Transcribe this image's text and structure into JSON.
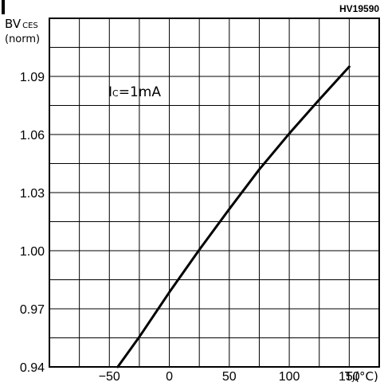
{
  "chart_data": {
    "type": "line",
    "figure_code": "HV19590",
    "ylabel_main": "BV",
    "ylabel_sub": "CES",
    "ylabel_norm": "(norm)",
    "xlabel_main": "T",
    "xlabel_sub": "J",
    "xlabel_unit": "(°C)",
    "annotation_main": "I",
    "annotation_sub": "C",
    "annotation_value": "=1mA",
    "xlim": [
      -100,
      175
    ],
    "ylim": [
      0.94,
      1.12
    ],
    "x_ticks": [
      -50,
      0,
      50,
      100,
      150
    ],
    "x_tick_labels": [
      "−50",
      "0",
      "50",
      "100",
      "150"
    ],
    "y_ticks": [
      0.94,
      0.97,
      1.0,
      1.03,
      1.06,
      1.09
    ],
    "y_tick_labels": [
      "0.94",
      "0.97",
      "1.00",
      "1.03",
      "1.06",
      "1.09"
    ],
    "grid": true,
    "series": [
      {
        "x": [
          -43,
          -25,
          0,
          25,
          50,
          75,
          100,
          125,
          150
        ],
        "y": [
          0.94,
          0.9555,
          0.9785,
          1.0005,
          1.0215,
          1.042,
          1.0605,
          1.078,
          1.095
        ]
      }
    ]
  }
}
